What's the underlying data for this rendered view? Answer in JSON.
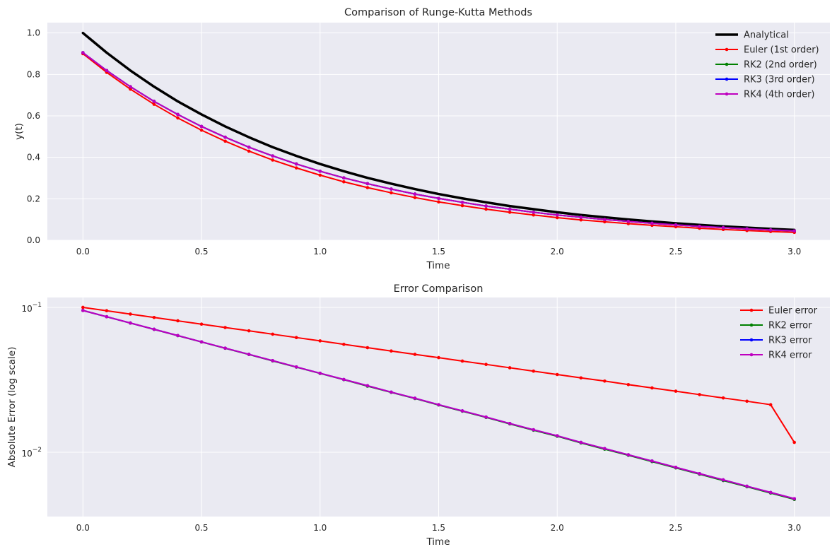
{
  "chart_data": [
    {
      "type": "line",
      "title": "Comparison of Runge-Kutta Methods",
      "xlabel": "Time",
      "ylabel": "y(t)",
      "xlim": [
        -0.15,
        3.15
      ],
      "ylim": [
        0,
        1.05
      ],
      "xticks": [
        "0.0",
        "0.5",
        "1.0",
        "1.5",
        "2.0",
        "2.5",
        "3.0"
      ],
      "yticks": [
        "0.0",
        "0.2",
        "0.4",
        "0.6",
        "0.8",
        "1.0"
      ],
      "grid": true,
      "legend_position": "top-right",
      "x": [
        0.0,
        0.1,
        0.2,
        0.3,
        0.4,
        0.5,
        0.6,
        0.7,
        0.8,
        0.9,
        1.0,
        1.1,
        1.2,
        1.3,
        1.4,
        1.5,
        1.6,
        1.7,
        1.8,
        1.9,
        2.0,
        2.1,
        2.2,
        2.3,
        2.4,
        2.5,
        2.6,
        2.7,
        2.8,
        2.9,
        3.0
      ],
      "series": [
        {
          "name": "Analytical",
          "color": "#000000",
          "marker": false,
          "values": [
            1.0,
            0.905,
            0.819,
            0.741,
            0.67,
            0.607,
            0.549,
            0.497,
            0.449,
            0.407,
            0.368,
            0.333,
            0.301,
            0.273,
            0.247,
            0.223,
            0.202,
            0.183,
            0.165,
            0.15,
            0.135,
            0.122,
            0.111,
            0.1,
            0.091,
            0.082,
            0.074,
            0.067,
            0.061,
            0.055,
            0.05
          ]
        },
        {
          "name": "Euler (1st order)",
          "color": "#ff0000",
          "marker": true,
          "values": [
            0.9,
            0.81,
            0.729,
            0.656,
            0.59,
            0.531,
            0.478,
            0.43,
            0.387,
            0.349,
            0.314,
            0.282,
            0.254,
            0.229,
            0.206,
            0.185,
            0.167,
            0.15,
            0.135,
            0.122,
            0.109,
            0.098,
            0.089,
            0.08,
            0.072,
            0.065,
            0.058,
            0.052,
            0.047,
            0.042,
            0.038
          ]
        },
        {
          "name": "RK2 (2nd order)",
          "color": "#008000",
          "marker": true,
          "values": [
            0.905,
            0.819,
            0.741,
            0.67,
            0.607,
            0.549,
            0.497,
            0.449,
            0.407,
            0.368,
            0.333,
            0.301,
            0.273,
            0.247,
            0.223,
            0.202,
            0.183,
            0.165,
            0.15,
            0.135,
            0.122,
            0.111,
            0.1,
            0.091,
            0.082,
            0.074,
            0.067,
            0.061,
            0.055,
            0.05,
            0.045
          ]
        },
        {
          "name": "RK3 (3rd order)",
          "color": "#0000ff",
          "marker": true,
          "values": [
            0.905,
            0.819,
            0.741,
            0.67,
            0.607,
            0.549,
            0.497,
            0.449,
            0.407,
            0.368,
            0.333,
            0.301,
            0.273,
            0.247,
            0.223,
            0.202,
            0.183,
            0.165,
            0.15,
            0.135,
            0.122,
            0.111,
            0.1,
            0.091,
            0.082,
            0.074,
            0.067,
            0.061,
            0.055,
            0.05,
            0.045
          ]
        },
        {
          "name": "RK4 (4th order)",
          "color": "#bf00bf",
          "marker": true,
          "values": [
            0.905,
            0.819,
            0.741,
            0.67,
            0.607,
            0.549,
            0.497,
            0.449,
            0.407,
            0.368,
            0.333,
            0.301,
            0.273,
            0.247,
            0.223,
            0.202,
            0.183,
            0.165,
            0.15,
            0.135,
            0.122,
            0.111,
            0.1,
            0.091,
            0.082,
            0.074,
            0.067,
            0.061,
            0.055,
            0.05,
            0.045
          ]
        }
      ]
    },
    {
      "type": "line",
      "title": "Error Comparison",
      "xlabel": "Time",
      "ylabel": "Absolute Error (log scale)",
      "yscale": "log",
      "xlim": [
        -0.15,
        3.15
      ],
      "ylim": [
        0.0036,
        0.117
      ],
      "xticks": [
        "0.0",
        "0.5",
        "1.0",
        "1.5",
        "2.0",
        "2.5",
        "3.0"
      ],
      "yticks": [
        {
          "value": 0.1,
          "label_base": "10",
          "label_exp": "−1"
        },
        {
          "value": 0.01,
          "label_base": "10",
          "label_exp": "−2"
        }
      ],
      "grid": true,
      "legend_position": "top-right",
      "x": [
        0.0,
        0.1,
        0.2,
        0.3,
        0.4,
        0.5,
        0.6,
        0.7,
        0.8,
        0.9,
        1.0,
        1.1,
        1.2,
        1.3,
        1.4,
        1.5,
        1.6,
        1.7,
        1.8,
        1.9,
        2.0,
        2.1,
        2.2,
        2.3,
        2.4,
        2.5,
        2.6,
        2.7,
        2.8,
        2.9,
        3.0
      ],
      "series": [
        {
          "name": "Euler error",
          "color": "#ff0000",
          "marker": true,
          "values": [
            0.1,
            0.0948,
            0.0899,
            0.0852,
            0.0808,
            0.0766,
            0.0726,
            0.0689,
            0.0653,
            0.0619,
            0.0587,
            0.0556,
            0.0527,
            0.05,
            0.0474,
            0.045,
            0.0426,
            0.0404,
            0.0383,
            0.0363,
            0.0344,
            0.0326,
            0.031,
            0.0293,
            0.0278,
            0.0264,
            0.025,
            0.0237,
            0.0225,
            0.0213,
            0.0117
          ]
        },
        {
          "name": "RK2 error",
          "color": "#008000",
          "marker": true,
          "values": [
            0.0952,
            0.0861,
            0.0779,
            0.0705,
            0.0638,
            0.0577,
            0.0522,
            0.0473,
            0.0427,
            0.0387,
            0.035,
            0.0317,
            0.0286,
            0.0259,
            0.0235,
            0.0212,
            0.0192,
            0.0174,
            0.0157,
            0.0142,
            0.0129,
            0.0116,
            0.0105,
            0.00953,
            0.00862,
            0.0078,
            0.00706,
            0.00638,
            0.00578,
            0.00523,
            0.00473
          ]
        },
        {
          "name": "RK3 error",
          "color": "#0000ff",
          "marker": true,
          "values": [
            0.0952,
            0.0862,
            0.078,
            0.0706,
            0.0639,
            0.0578,
            0.0523,
            0.0474,
            0.0429,
            0.0388,
            0.0351,
            0.0318,
            0.0288,
            0.026,
            0.0236,
            0.0213,
            0.0193,
            0.0175,
            0.0158,
            0.0143,
            0.013,
            0.0117,
            0.0106,
            0.00961,
            0.0087,
            0.00787,
            0.00712,
            0.00645,
            0.00583,
            0.00528,
            0.00478
          ]
        },
        {
          "name": "RK4 error",
          "color": "#bf00bf",
          "marker": true,
          "values": [
            0.0952,
            0.0862,
            0.078,
            0.0706,
            0.0639,
            0.0578,
            0.0523,
            0.0474,
            0.0429,
            0.0388,
            0.0351,
            0.0318,
            0.0288,
            0.026,
            0.0236,
            0.0213,
            0.0193,
            0.0175,
            0.0158,
            0.0143,
            0.013,
            0.0117,
            0.0106,
            0.00961,
            0.0087,
            0.00787,
            0.00712,
            0.00645,
            0.00583,
            0.00528,
            0.00478
          ]
        }
      ]
    }
  ]
}
